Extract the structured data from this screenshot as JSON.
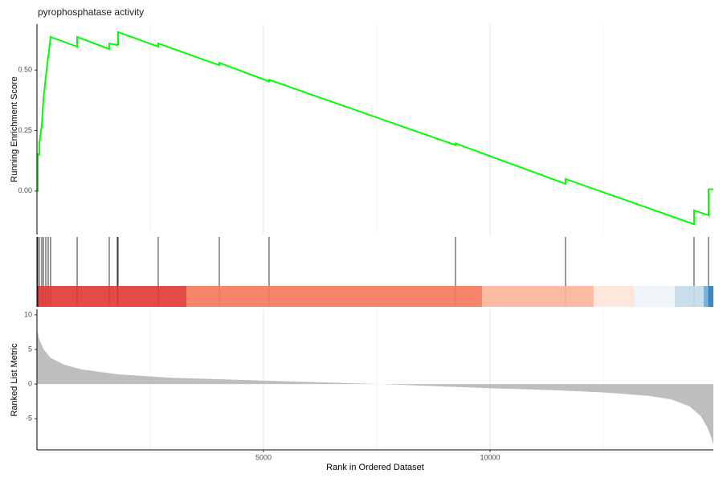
{
  "chart_data": {
    "type": "gsea",
    "title": "pyrophosphatase activity",
    "xlabel": "Rank in Ordered Dataset",
    "xlim": [
      0,
      14930
    ],
    "xticks": [
      5000,
      10000
    ],
    "x_minor_grid": [
      2500,
      7500,
      12500
    ],
    "running": {
      "ylabel": "Running Enrichment Score",
      "color": "#00ff00",
      "ylim": [
        -0.18,
        0.69
      ],
      "yticks": [
        {
          "value": 0,
          "label": "0.00"
        },
        {
          "value": 0.25,
          "label": "0.25"
        },
        {
          "value": 0.5,
          "label": "0.50"
        }
      ],
      "x": [
        0,
        18,
        18,
        53,
        53,
        106,
        106,
        142,
        142,
        195,
        195,
        248,
        248,
        301,
        301,
        887,
        887,
        1596,
        1596,
        1773,
        1773,
        1791,
        1791,
        2677,
        2677,
        4025,
        4025,
        5124,
        5124,
        9238,
        9238,
        11667,
        11667,
        14504,
        14504,
        14823,
        14823,
        14930
      ],
      "values": [
        0,
        0,
        0.153,
        0.15,
        0.2,
        0.27,
        0.27,
        0.38,
        0.38,
        0.47,
        0.47,
        0.56,
        0.55,
        0.637,
        0.637,
        0.597,
        0.637,
        0.587,
        0.61,
        0.603,
        0.607,
        0.607,
        0.657,
        0.597,
        0.61,
        0.52,
        0.53,
        0.453,
        0.46,
        0.19,
        0.197,
        0.03,
        0.05,
        -0.137,
        -0.08,
        -0.1,
        0.007,
        0.007
      ]
    },
    "hits": [
      18,
      53,
      106,
      142,
      195,
      248,
      301,
      887,
      1596,
      1773,
      1791,
      2677,
      4025,
      5124,
      9238,
      11667,
      14504,
      14823
    ],
    "bands": [
      {
        "start": 0,
        "end": 35,
        "color": "#a50f15"
      },
      {
        "start": 35,
        "end": 3298,
        "color": "#e23b36"
      },
      {
        "start": 3298,
        "end": 9823,
        "color": "#f67b60"
      },
      {
        "start": 9823,
        "end": 12287,
        "color": "#fcb49a"
      },
      {
        "start": 12287,
        "end": 13191,
        "color": "#fde5da"
      },
      {
        "start": 13191,
        "end": 14078,
        "color": "#eef3fa"
      },
      {
        "start": 14078,
        "end": 14716,
        "color": "#c3dbe9"
      },
      {
        "start": 14716,
        "end": 14823,
        "color": "#6baed6"
      },
      {
        "start": 14823,
        "end": 14930,
        "color": "#2e7ebc"
      }
    ],
    "metric": {
      "ylabel": "Ranked List Metric",
      "color": "#bebebe",
      "ylim": [
        -9.5,
        10.8
      ],
      "yticks": [
        10,
        5,
        0,
        -5
      ],
      "x": [
        0,
        50,
        150,
        300,
        600,
        1000,
        1800,
        3000,
        5000,
        7300,
        8000,
        10000,
        11500,
        12500,
        13500,
        14000,
        14400,
        14650,
        14800,
        14900,
        14930
      ],
      "values": [
        8.0,
        6.5,
        5.0,
        3.8,
        2.8,
        2.1,
        1.4,
        0.9,
        0.5,
        0.05,
        -0.1,
        -0.6,
        -0.9,
        -1.2,
        -1.7,
        -2.2,
        -3.2,
        -4.6,
        -6.3,
        -8.0,
        -8.8
      ]
    }
  }
}
